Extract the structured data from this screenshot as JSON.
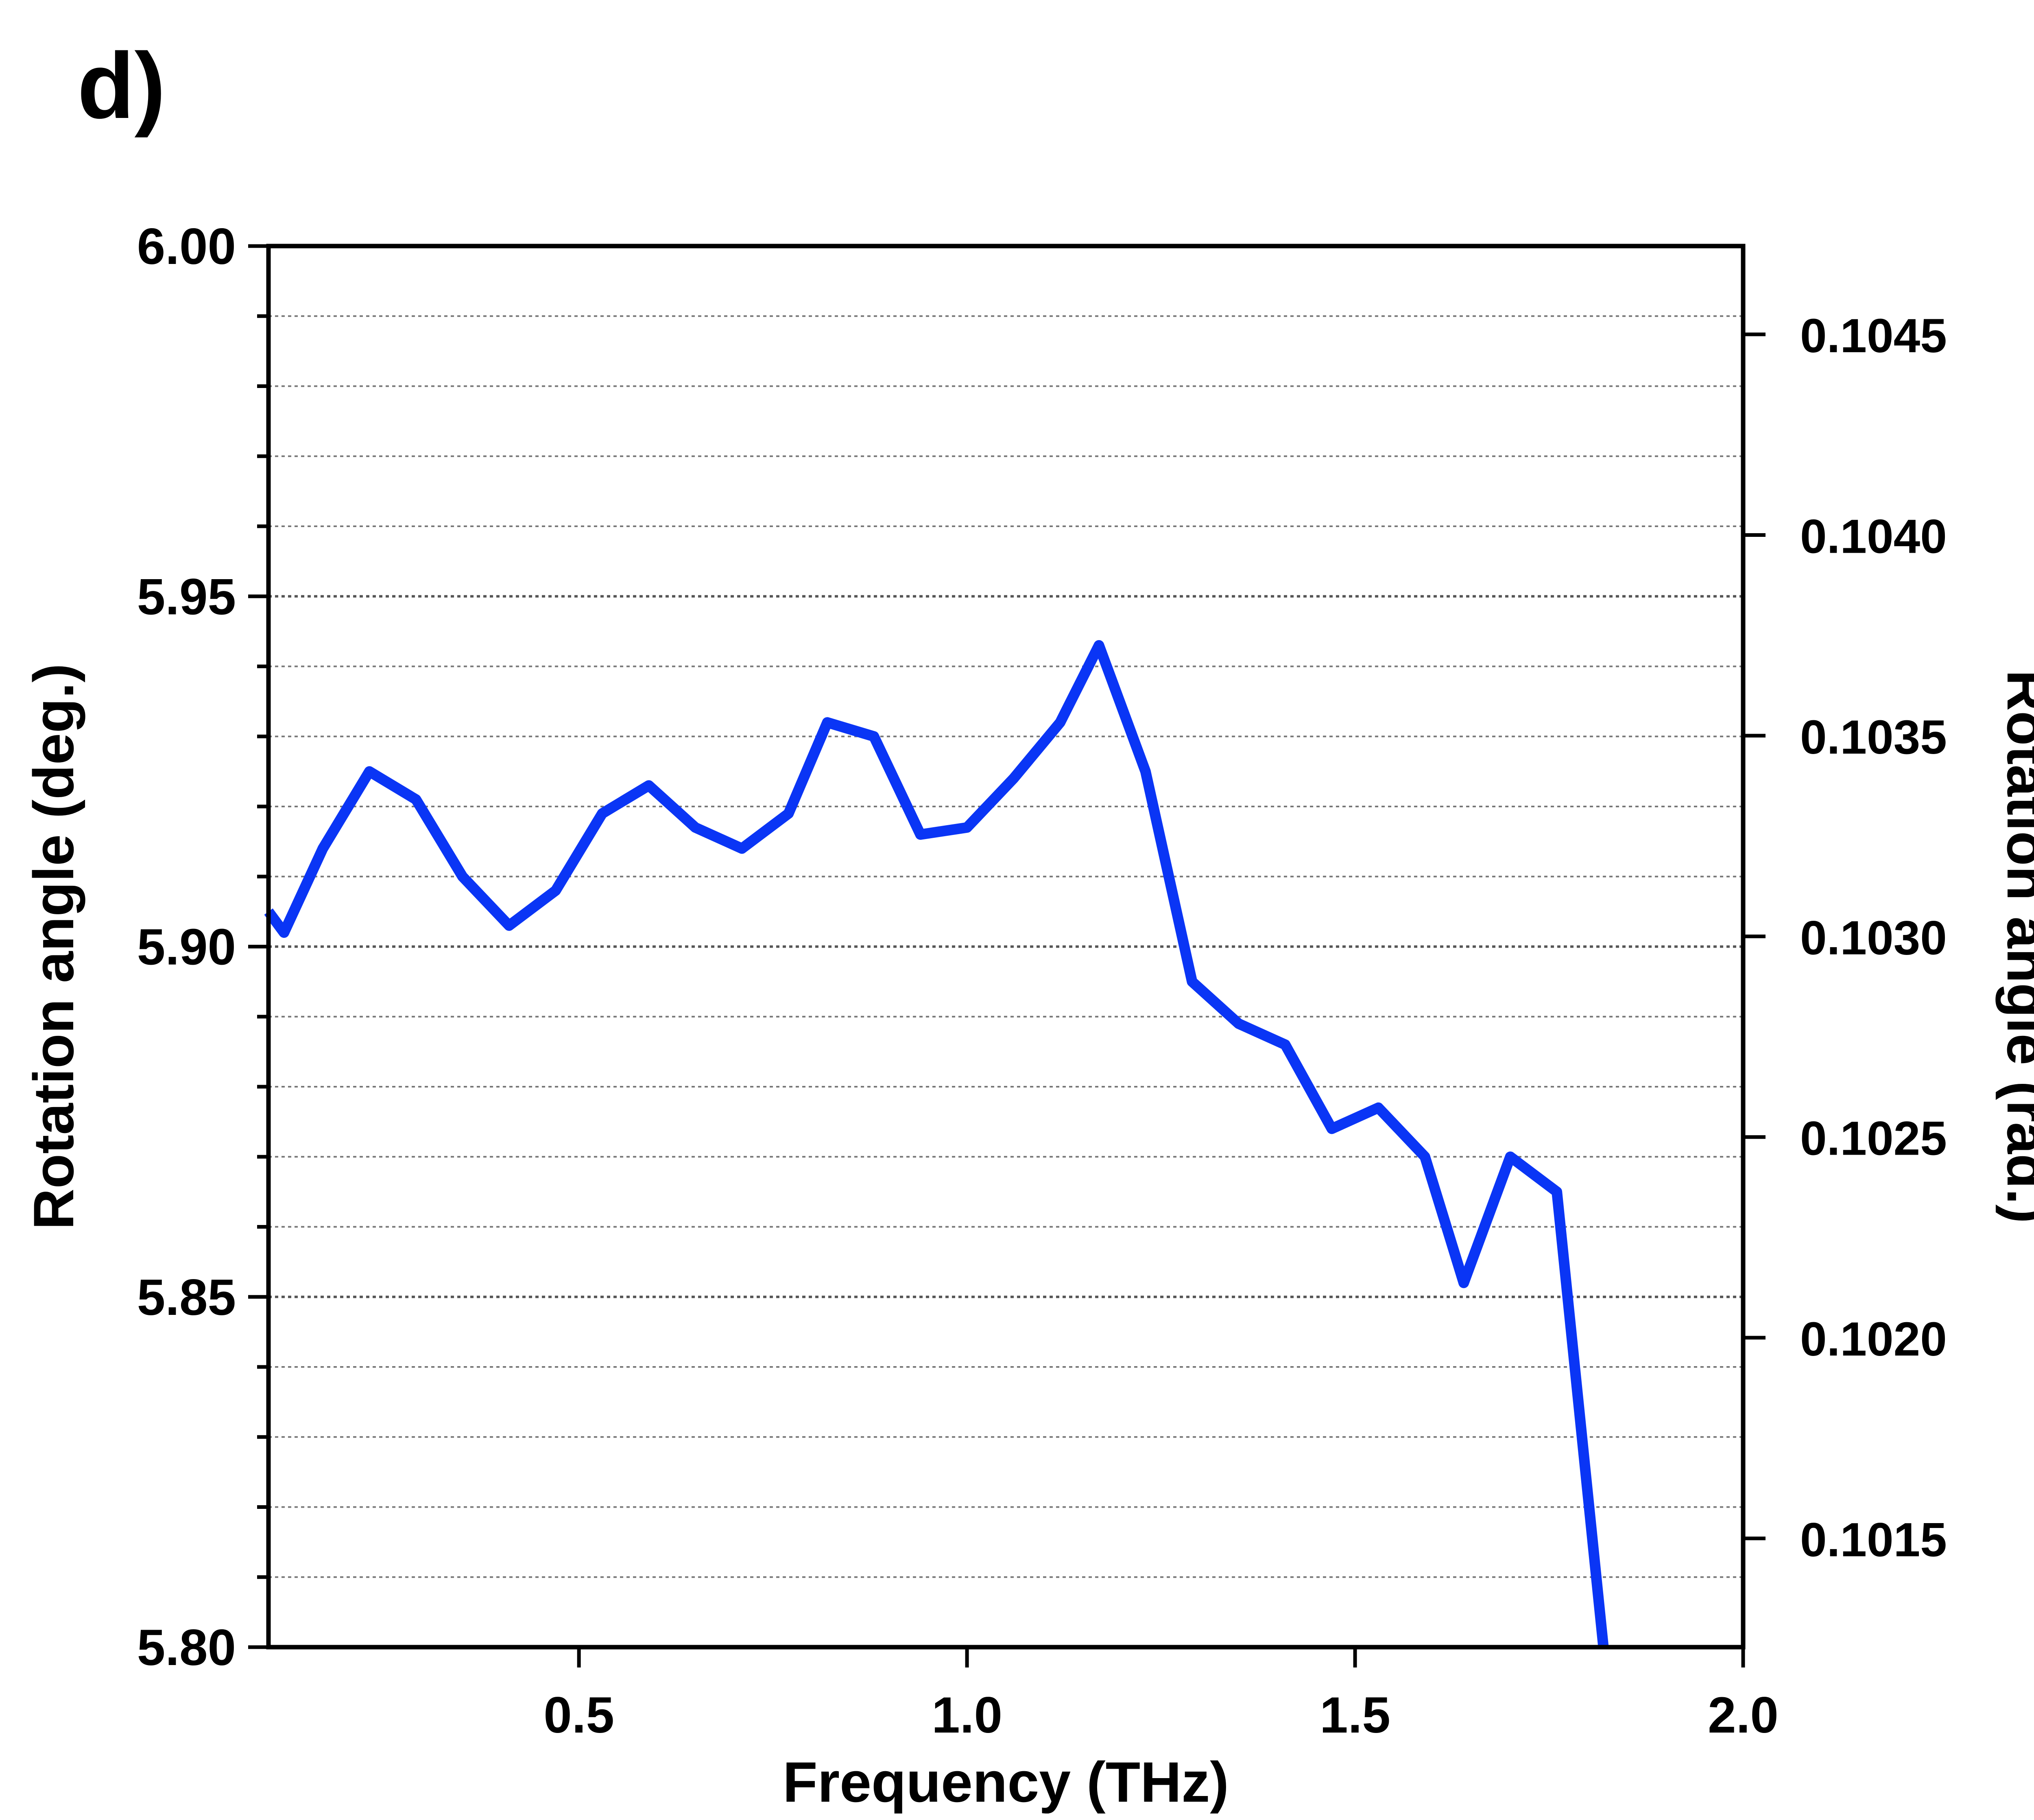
{
  "panel_label": "d)",
  "chart_data": {
    "type": "line",
    "xlabel": "Frequency (THz)",
    "ylabel": "Rotation angle (deg.)",
    "y2label": "Rotation angle (rad.)",
    "xlim": [
      0.1,
      2.0
    ],
    "ylim": [
      5.8,
      6.0
    ],
    "y2lim": [
      0.101229,
      0.10472
    ],
    "x_ticks": [
      "0.5",
      "1.0",
      "1.5",
      "2.0"
    ],
    "x_tick_values": [
      0.5,
      1.0,
      1.5,
      2.0
    ],
    "y_ticks": [
      "5.80",
      "5.85",
      "5.90",
      "5.95",
      "6.00"
    ],
    "y_tick_values": [
      5.8,
      5.85,
      5.9,
      5.95,
      6.0
    ],
    "y2_ticks": [
      "0.1015",
      "0.1020",
      "0.1025",
      "0.1030",
      "0.1035",
      "0.1040",
      "0.1045"
    ],
    "y2_tick_values": [
      0.1015,
      0.102,
      0.1025,
      0.103,
      0.1035,
      0.104,
      0.1045
    ],
    "y_minor_step": 0.01,
    "grid": "horizontal dotted",
    "line_color": "#0a35f5",
    "series": [
      {
        "x": [
          0.1,
          0.12,
          0.17,
          0.23,
          0.29,
          0.35,
          0.41,
          0.47,
          0.53,
          0.59,
          0.65,
          0.71,
          0.77,
          0.82,
          0.88,
          0.94,
          1.0,
          1.06,
          1.12,
          1.17,
          1.23,
          1.29,
          1.35,
          1.41,
          1.47,
          1.53,
          1.59,
          1.64,
          1.7,
          1.76,
          1.82
        ],
        "y": [
          5.905,
          5.902,
          5.914,
          5.925,
          5.921,
          5.91,
          5.903,
          5.908,
          5.919,
          5.923,
          5.917,
          5.914,
          5.919,
          5.932,
          5.93,
          5.916,
          5.917,
          5.924,
          5.932,
          5.943,
          5.925,
          5.895,
          5.889,
          5.886,
          5.874,
          5.877,
          5.87,
          5.852,
          5.87,
          5.865,
          5.8
        ]
      }
    ]
  }
}
